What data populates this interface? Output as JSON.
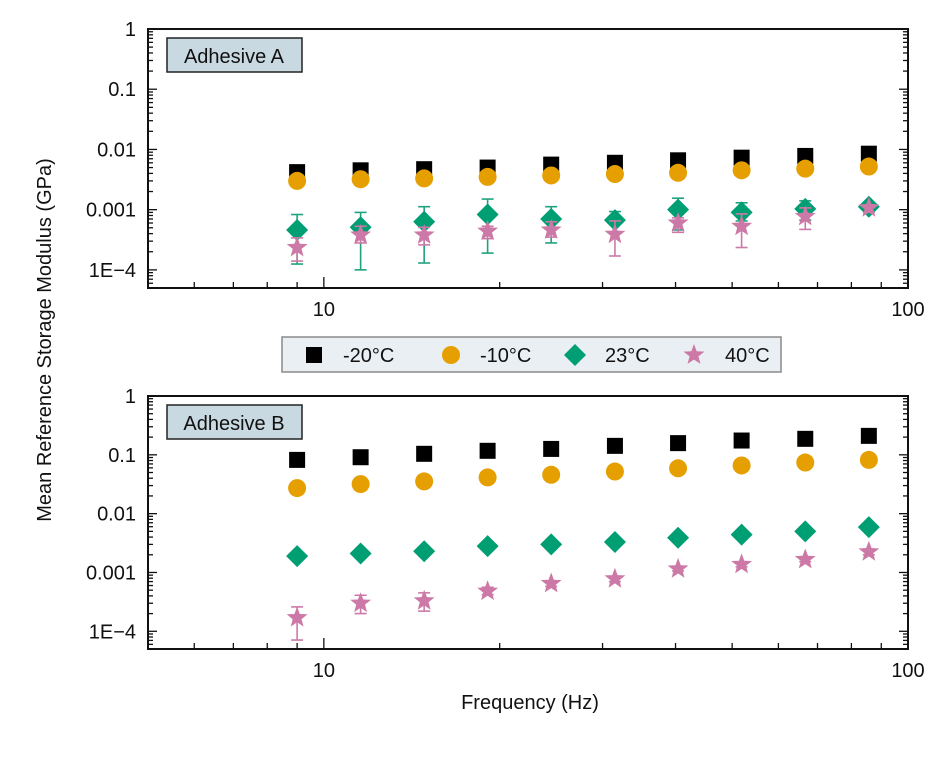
{
  "chart_data": {
    "type": "scatter",
    "ylabel": "Mean Reference Storage Modulus (GPa)",
    "xlabel": "Frequency (Hz)",
    "x_scale": "log",
    "y_scale": "log",
    "xlim": [
      5,
      100
    ],
    "ylim": [
      5e-05,
      1
    ],
    "x_ticks": [
      {
        "value": 10,
        "label": "10"
      },
      {
        "value": 100,
        "label": "100"
      }
    ],
    "y_ticks": [
      {
        "value": 1,
        "label": "1"
      },
      {
        "value": 0.1,
        "label": "0.1"
      },
      {
        "value": 0.01,
        "label": "0.01"
      },
      {
        "value": 0.001,
        "label": "0.001"
      },
      {
        "value": 0.0001,
        "label": "1E−4"
      }
    ],
    "grid": false,
    "legend": {
      "placement": "center, between panels",
      "entries": [
        {
          "name": "-20°C",
          "marker": "square",
          "color": "#000000"
        },
        {
          "name": "-10°C",
          "marker": "circle",
          "color": "#E69F00"
        },
        {
          "name": "23°C",
          "marker": "diamond",
          "color": "#009E73"
        },
        {
          "name": "40°C",
          "marker": "star",
          "color": "#CC79A7"
        }
      ]
    },
    "x": [
      9.0,
      11.56,
      14.85,
      19.07,
      24.5,
      31.5,
      40.4,
      51.9,
      66.7,
      85.7
    ],
    "panels": [
      {
        "label": "Adhesive A",
        "series": [
          {
            "name": "-20°C",
            "values": [
              0.0042,
              0.0045,
              0.0047,
              0.005,
              0.0056,
              0.006,
              0.0066,
              0.0073,
              0.0078,
              0.0085
            ]
          },
          {
            "name": "-10°C",
            "values": [
              0.003,
              0.0032,
              0.0033,
              0.0035,
              0.0037,
              0.0039,
              0.0041,
              0.0045,
              0.0048,
              0.0052
            ]
          },
          {
            "name": "23°C",
            "values": [
              0.00046,
              0.00051,
              0.00063,
              0.00083,
              0.0007,
              0.00067,
              0.001,
              0.0009,
              0.00103,
              0.00112
            ],
            "err_high": [
              0.00083,
              0.0009,
              0.00112,
              0.0015,
              0.00112,
              0.00093,
              0.00155,
              0.0013,
              0.0014,
              0.0013
            ],
            "err_low": [
              0.000125,
              0.0001,
              0.00013,
              0.00019,
              0.00028,
              0.00063,
              0.00046,
              0.00065,
              0.00067,
              0.001
            ]
          },
          {
            "name": "40°C",
            "values": [
              0.000235,
              0.00038,
              0.00038,
              0.00044,
              0.00046,
              0.00039,
              0.0006,
              0.00053,
              0.00077,
              0.00107
            ],
            "err_high": [
              0.00034,
              0.00053,
              0.00051,
              0.00053,
              0.00063,
              0.00065,
              0.00073,
              0.00085,
              0.00107,
              0.0012
            ],
            "err_low": [
              0.00014,
              0.00028,
              0.00026,
              0.00033,
              0.00035,
              0.00017,
              0.00042,
              0.000235,
              0.00047,
              0.0009
            ]
          }
        ]
      },
      {
        "label": "Adhesive B",
        "series": [
          {
            "name": "-20°C",
            "values": [
              0.082,
              0.091,
              0.104,
              0.117,
              0.126,
              0.142,
              0.158,
              0.175,
              0.187,
              0.21
            ]
          },
          {
            "name": "-10°C",
            "values": [
              0.0272,
              0.0318,
              0.0353,
              0.0413,
              0.0458,
              0.052,
              0.059,
              0.066,
              0.074,
              0.082
            ]
          },
          {
            "name": "23°C",
            "values": [
              0.0019,
              0.0021,
              0.0023,
              0.0028,
              0.003,
              0.0033,
              0.0039,
              0.0044,
              0.005,
              0.0059
            ]
          },
          {
            "name": "40°C",
            "values": [
              0.00017,
              0.0003,
              0.00033,
              0.00048,
              0.00065,
              0.00078,
              0.00115,
              0.00137,
              0.00166,
              0.00224
            ],
            "err_high": [
              0.00026,
              0.00041,
              0.00045,
              0.00056,
              0.00072,
              0.00086,
              0.00125,
              0.0015,
              0.0018,
              0.0025
            ],
            "err_low": [
              7.1e-05,
              0.0002,
              0.00022,
              0.00042,
              0.00058,
              0.0007,
              0.00106,
              0.00125,
              0.00153,
              0.002
            ]
          }
        ]
      }
    ]
  }
}
